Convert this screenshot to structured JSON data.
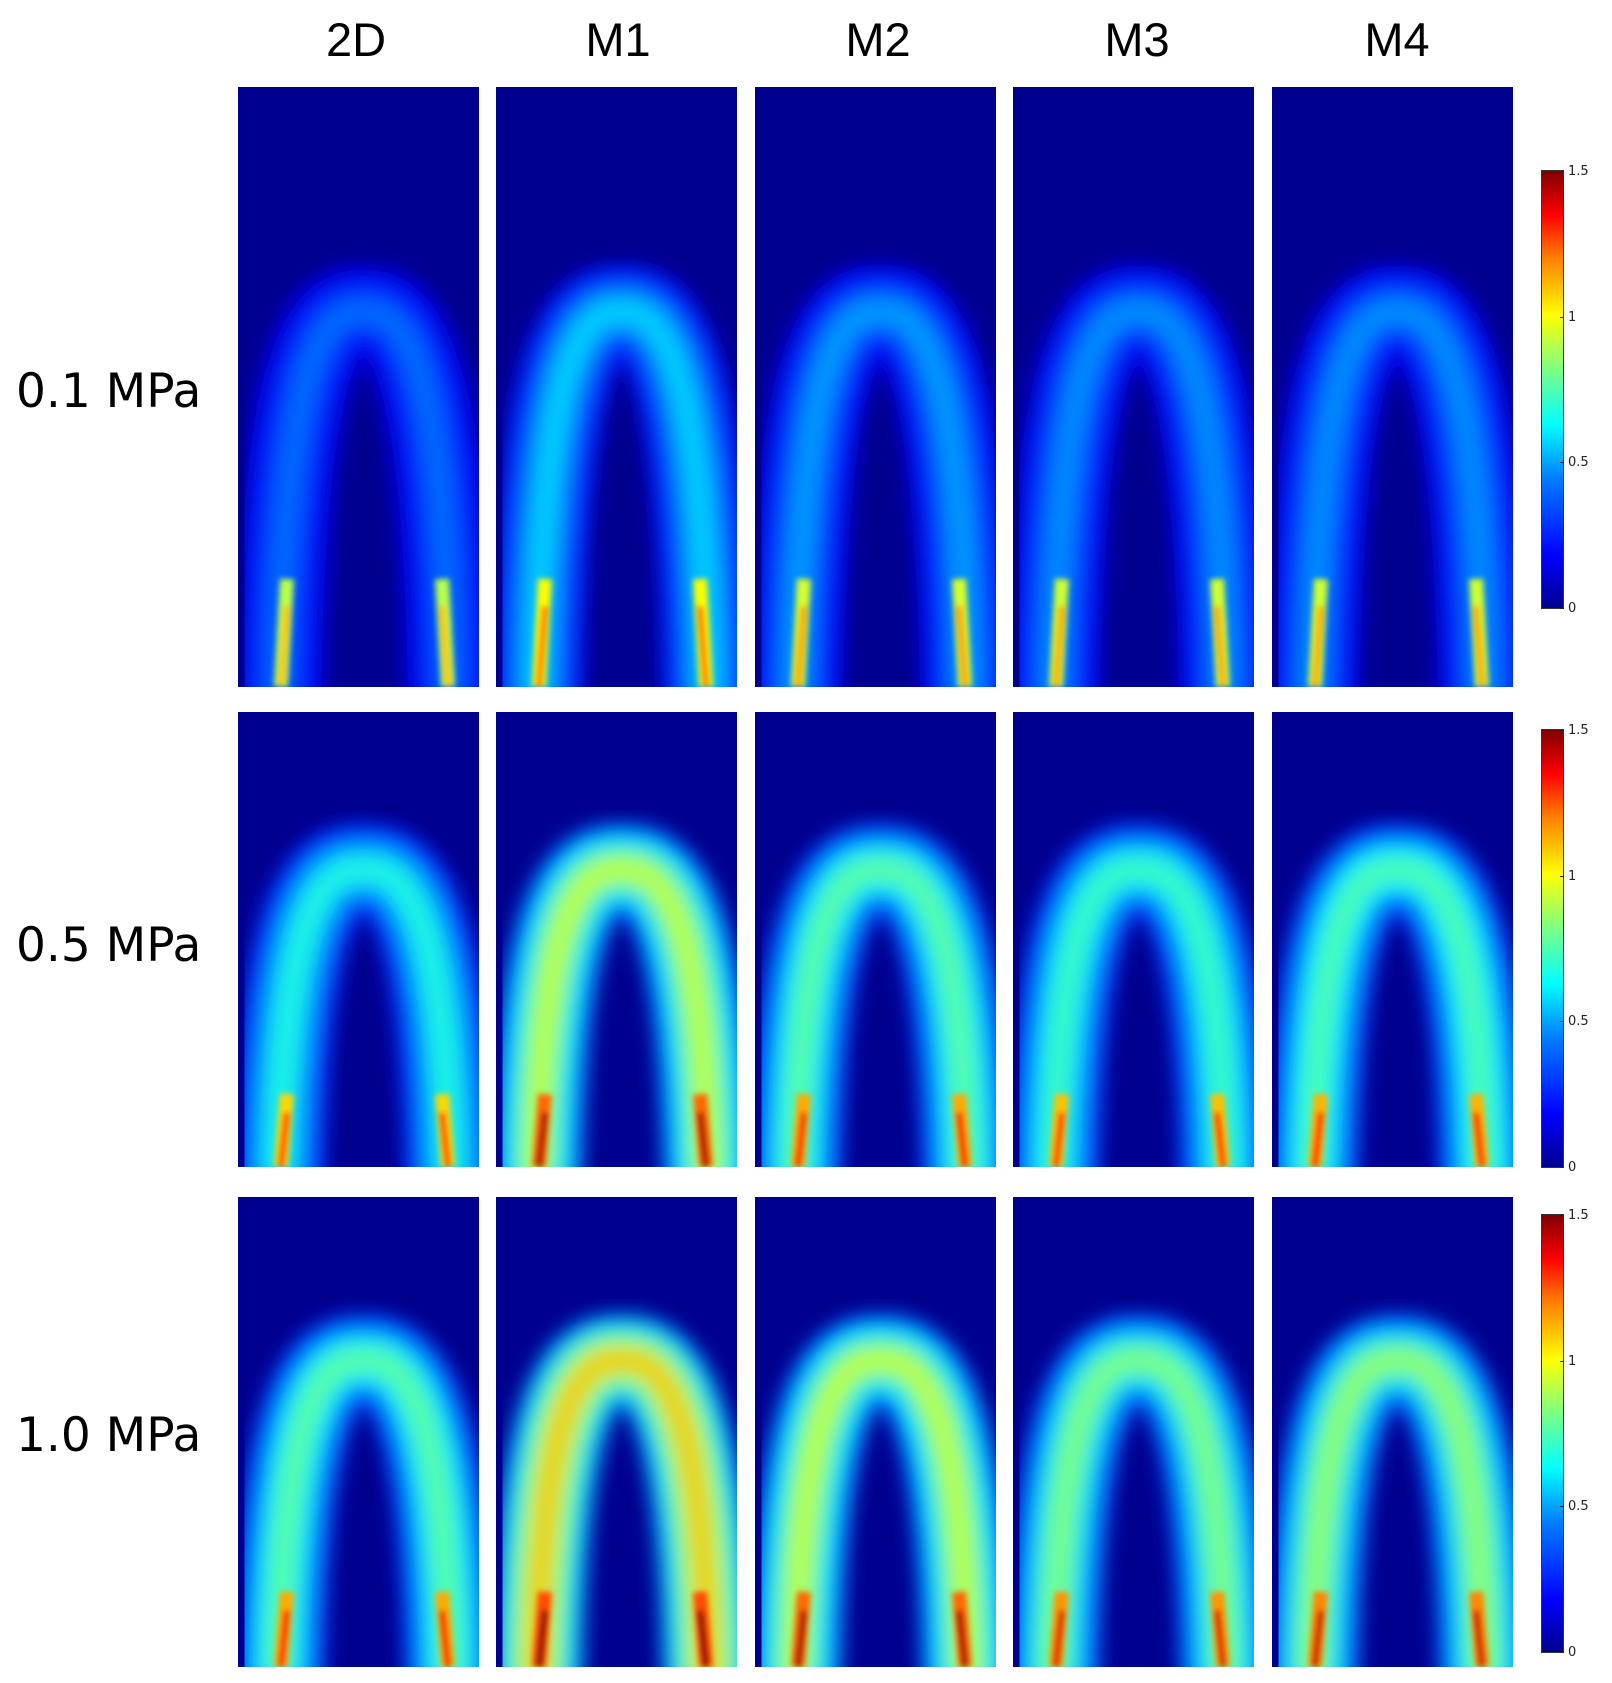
{
  "columns": [
    "2D",
    "M1",
    "M2",
    "M3",
    "M4"
  ],
  "rows": [
    {
      "label": "0.1 MPa",
      "intensity": [
        0.35,
        0.5,
        0.42,
        0.4,
        0.4
      ]
    },
    {
      "label": "0.5 MPa",
      "intensity": [
        0.6,
        0.85,
        0.7,
        0.65,
        0.68
      ]
    },
    {
      "label": "1.0 MPa",
      "intensity": [
        0.7,
        1.0,
        0.85,
        0.75,
        0.78
      ]
    }
  ],
  "colorbar": {
    "ticks": [
      "1.5",
      "1",
      "0.5",
      "0"
    ],
    "colormap": "jet",
    "background_color": "#00008f"
  }
}
